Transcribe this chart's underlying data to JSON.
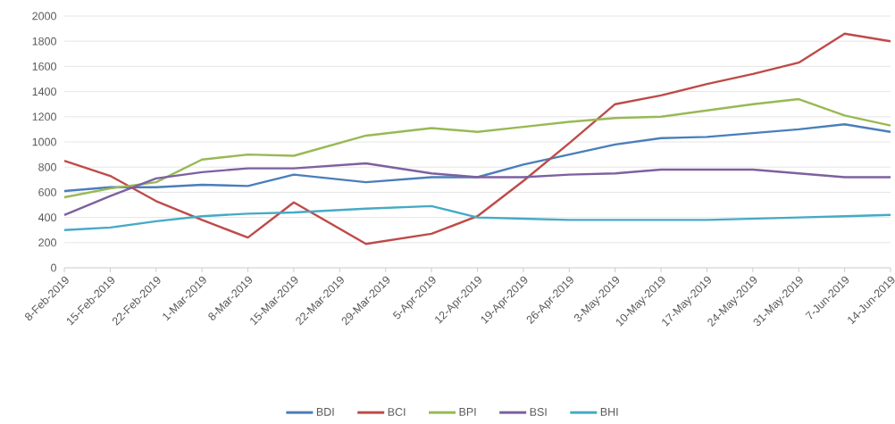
{
  "chart_data": {
    "type": "line",
    "x": [
      "2019-02-08",
      "2019-02-15",
      "2019-02-22",
      "2019-03-01",
      "2019-03-08",
      "2019-03-15",
      "2019-03-26",
      "2019-04-05",
      "2019-04-12",
      "2019-04-19",
      "2019-04-26",
      "2019-05-03",
      "2019-05-10",
      "2019-05-17",
      "2019-05-24",
      "2019-05-31",
      "2019-06-07",
      "2019-06-14"
    ],
    "series": [
      {
        "name": "BDI",
        "color": "#4a7ebb",
        "values": [
          610,
          640,
          640,
          660,
          650,
          740,
          680,
          720,
          720,
          820,
          900,
          980,
          1030,
          1040,
          1070,
          1100,
          1140,
          1080
        ]
      },
      {
        "name": "BCI",
        "color": "#be4b48",
        "values": [
          850,
          730,
          530,
          380,
          240,
          520,
          190,
          270,
          410,
          690,
          990,
          1300,
          1370,
          1460,
          1540,
          1630,
          1860,
          1800
        ]
      },
      {
        "name": "BPI",
        "color": "#98b954",
        "values": [
          560,
          630,
          680,
          860,
          900,
          890,
          1050,
          1110,
          1080,
          1120,
          1160,
          1190,
          1200,
          1250,
          1300,
          1340,
          1210,
          1130
        ]
      },
      {
        "name": "BSI",
        "color": "#7d60a0",
        "values": [
          420,
          570,
          710,
          760,
          790,
          790,
          830,
          750,
          720,
          720,
          740,
          750,
          780,
          780,
          780,
          750,
          720,
          720
        ]
      },
      {
        "name": "BHI",
        "color": "#46aac5",
        "values": [
          300,
          320,
          370,
          410,
          430,
          440,
          470,
          490,
          400,
          390,
          380,
          380,
          380,
          380,
          390,
          400,
          410,
          420
        ]
      }
    ],
    "xlim": [
      "2019-02-08",
      "2019-06-14"
    ],
    "xticks": [
      {
        "value": "2019-02-08",
        "label": "8-Feb-2019"
      },
      {
        "value": "2019-02-15",
        "label": "15-Feb-2019"
      },
      {
        "value": "2019-02-22",
        "label": "22-Feb-2019"
      },
      {
        "value": "2019-03-01",
        "label": "1-Mar-2019"
      },
      {
        "value": "2019-03-08",
        "label": "8-Mar-2019"
      },
      {
        "value": "2019-03-15",
        "label": "15-Mar-2019"
      },
      {
        "value": "2019-03-22",
        "label": "22-Mar-2019"
      },
      {
        "value": "2019-03-29",
        "label": "29-Mar-2019"
      },
      {
        "value": "2019-04-05",
        "label": "5-Apr-2019"
      },
      {
        "value": "2019-04-12",
        "label": "12-Apr-2019"
      },
      {
        "value": "2019-04-19",
        "label": "19-Apr-2019"
      },
      {
        "value": "2019-04-26",
        "label": "26-Apr-2019"
      },
      {
        "value": "2019-05-03",
        "label": "3-May-2019"
      },
      {
        "value": "2019-05-10",
        "label": "10-May-2019"
      },
      {
        "value": "2019-05-17",
        "label": "17-May-2019"
      },
      {
        "value": "2019-05-24",
        "label": "24-May-2019"
      },
      {
        "value": "2019-05-31",
        "label": "31-May-2019"
      },
      {
        "value": "2019-06-07",
        "label": "7-Jun-2019"
      },
      {
        "value": "2019-06-14",
        "label": "14-Jun-2019"
      }
    ],
    "ylim": [
      0,
      2000
    ],
    "yticks": [
      0,
      200,
      400,
      600,
      800,
      1000,
      1200,
      1400,
      1600,
      1800,
      2000
    ],
    "grid": "y",
    "legend": "bottom",
    "marker": "none",
    "line_style": "solid"
  }
}
